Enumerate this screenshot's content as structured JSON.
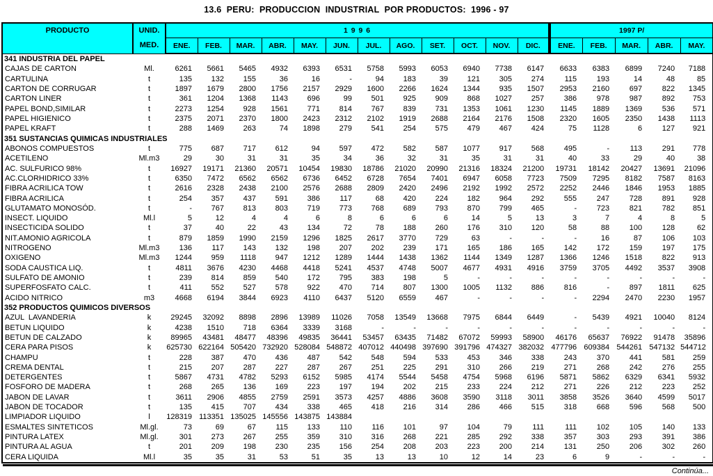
{
  "title": "13.6  PERU:  PRODUCCION  INDUSTRIAL  POR PRODUCTOS:  1996 - 97",
  "footer": "Continúa...",
  "colors": {
    "header_bg": "#00FFFF",
    "border": "#000000",
    "text": "#000000"
  },
  "table": {
    "header": {
      "product_label": "PRODUCTO",
      "unit_label_line1": "UNID.",
      "unit_label_line2": "MED.",
      "group_1996_label": "1 9 9 6",
      "group_1997_label": "1997 P/",
      "months_1996": [
        "ENE.",
        "FEB.",
        "MAR.",
        "ABR.",
        "MAY.",
        "JUN.",
        "JUL.",
        "AGO.",
        "SET.",
        "OCT.",
        "NOV.",
        "DIC."
      ],
      "months_1997": [
        "ENE.",
        "FEB.",
        "MAR.",
        "ABR.",
        "MAY."
      ]
    },
    "sections": [
      {
        "heading": "341 INDUSTRIA DEL PAPEL",
        "rows": [
          {
            "product": "CAJAS DE CARTON",
            "unit": "Ml.",
            "values": [
              "6261",
              "5661",
              "5465",
              "4932",
              "6393",
              "6531",
              "5758",
              "5993",
              "6053",
              "6940",
              "7738",
              "6147",
              "6633",
              "6383",
              "6899",
              "7240",
              "7188"
            ]
          },
          {
            "product": "CARTULINA",
            "unit": "t",
            "values": [
              "135",
              "132",
              "155",
              "36",
              "16",
              "-",
              "94",
              "183",
              "39",
              "121",
              "305",
              "274",
              "115",
              "193",
              "14",
              "48",
              "85"
            ]
          },
          {
            "product": "CARTON DE CORRUGAR",
            "unit": "t",
            "values": [
              "1897",
              "1679",
              "2800",
              "1756",
              "2157",
              "2929",
              "1600",
              "2266",
              "1624",
              "1344",
              "935",
              "1507",
              "2953",
              "2160",
              "697",
              "822",
              "1345"
            ]
          },
          {
            "product": "CARTON LINER",
            "unit": "t",
            "values": [
              "361",
              "1204",
              "1368",
              "1143",
              "696",
              "99",
              "501",
              "925",
              "909",
              "868",
              "1027",
              "257",
              "386",
              "978",
              "987",
              "892",
              "753"
            ]
          },
          {
            "product": "PAPEL BOND,SIMILAR",
            "unit": "t",
            "values": [
              "2273",
              "1254",
              "928",
              "1561",
              "771",
              "814",
              "767",
              "839",
              "731",
              "1353",
              "1061",
              "1230",
              "1145",
              "1889",
              "1369",
              "536",
              "571"
            ]
          },
          {
            "product": "PAPEL HIGIENICO",
            "unit": "t",
            "values": [
              "2375",
              "2071",
              "2370",
              "1800",
              "2423",
              "2312",
              "2102",
              "1919",
              "2688",
              "2164",
              "2176",
              "1508",
              "2320",
              "1605",
              "2350",
              "1438",
              "1113"
            ]
          },
          {
            "product": "PAPEL KRAFT",
            "unit": "t",
            "values": [
              "288",
              "1469",
              "263",
              "74",
              "1898",
              "279",
              "541",
              "254",
              "575",
              "479",
              "467",
              "424",
              "75",
              "1128",
              "6",
              "127",
              "921"
            ]
          }
        ]
      },
      {
        "heading": "351 SUSTANCIAS QUIMICAS INDUSTRIALES",
        "rows": [
          {
            "product": "ABONOS COMPUESTOS",
            "unit": "t",
            "values": [
              "775",
              "687",
              "717",
              "612",
              "94",
              "597",
              "472",
              "582",
              "587",
              "1077",
              "917",
              "568",
              "495",
              "-",
              "113",
              "291",
              "778"
            ]
          },
          {
            "product": "ACETILENO",
            "unit": "Ml.m3",
            "values": [
              "29",
              "30",
              "31",
              "31",
              "35",
              "34",
              "36",
              "32",
              "31",
              "35",
              "31",
              "31",
              "40",
              "33",
              "29",
              "40",
              "38"
            ]
          },
          {
            "product": "AC. SULFURICO 98%",
            "unit": "t",
            "values": [
              "16927",
              "19171",
              "21360",
              "20571",
              "10454",
              "19830",
              "18786",
              "21020",
              "20990",
              "21316",
              "18324",
              "21200",
              "19731",
              "18142",
              "20427",
              "13691",
              "21096"
            ]
          },
          {
            "product": "AC.CLORHIDRICO 33%",
            "unit": "t",
            "values": [
              "6350",
              "7472",
              "6562",
              "6562",
              "6736",
              "6452",
              "6728",
              "7654",
              "7401",
              "6947",
              "6058",
              "7723",
              "7509",
              "7295",
              "8182",
              "7587",
              "8163"
            ]
          },
          {
            "product": "FIBRA ACRILICA TOW",
            "unit": "t",
            "values": [
              "2616",
              "2328",
              "2438",
              "2100",
              "2576",
              "2688",
              "2809",
              "2420",
              "2496",
              "2192",
              "1992",
              "2572",
              "2252",
              "2446",
              "1846",
              "1953",
              "1885"
            ]
          },
          {
            "product": "FIBRA ACRILICA",
            "unit": "t",
            "values": [
              "254",
              "357",
              "437",
              "591",
              "386",
              "117",
              "68",
              "420",
              "224",
              "182",
              "964",
              "292",
              "555",
              "247",
              "728",
              "891",
              "928"
            ]
          },
          {
            "product": "GLUTAMATO MONOSÓD.",
            "unit": "t",
            "values": [
              "-",
              "767",
              "813",
              "803",
              "719",
              "773",
              "768",
              "689",
              "793",
              "870",
              "799",
              "465",
              "-",
              "723",
              "821",
              "782",
              "851"
            ]
          },
          {
            "product": "INSECT. LIQUIDO",
            "unit": "Ml.l",
            "values": [
              "5",
              "12",
              "4",
              "4",
              "6",
              "8",
              "6",
              "6",
              "6",
              "14",
              "5",
              "13",
              "3",
              "7",
              "4",
              "8",
              "5"
            ]
          },
          {
            "product": "INSECTICIDA SOLIDO",
            "unit": "t",
            "values": [
              "37",
              "40",
              "22",
              "43",
              "134",
              "72",
              "78",
              "188",
              "260",
              "176",
              "310",
              "120",
              "58",
              "88",
              "100",
              "128",
              "62"
            ]
          },
          {
            "product": "NIT.AMONIO AGRICOLA",
            "unit": "t",
            "values": [
              "879",
              "1859",
              "1990",
              "2159",
              "1296",
              "1825",
              "2617",
              "3770",
              "729",
              "63",
              "-",
              "-",
              "-",
              "16",
              "87",
              "106",
              "103"
            ]
          },
          {
            "product": "NITROGENO",
            "unit": "Ml.m3",
            "values": [
              "136",
              "117",
              "143",
              "132",
              "198",
              "207",
              "202",
              "239",
              "171",
              "165",
              "186",
              "165",
              "142",
              "172",
              "159",
              "197",
              "175"
            ]
          },
          {
            "product": "OXIGENO",
            "unit": "Ml.m3",
            "values": [
              "1244",
              "959",
              "1118",
              "947",
              "1212",
              "1289",
              "1444",
              "1438",
              "1362",
              "1144",
              "1349",
              "1287",
              "1366",
              "1246",
              "1518",
              "822",
              "913"
            ]
          },
          {
            "product": "SODA CAUSTICA LIQ.",
            "unit": "t",
            "values": [
              "4811",
              "3676",
              "4230",
              "4468",
              "4418",
              "5241",
              "4537",
              "4748",
              "5007",
              "4677",
              "4931",
              "4916",
              "3759",
              "3705",
              "4492",
              "3537",
              "3908"
            ]
          },
          {
            "product": "SULFATO DE AMONIO",
            "unit": "t",
            "values": [
              "239",
              "814",
              "859",
              "540",
              "172",
              "795",
              "383",
              "198",
              "5",
              "-",
              "-",
              "-",
              "-",
              "-",
              "-",
              "-",
              "-"
            ]
          },
          {
            "product": "SUPERFOSFATO CALC.",
            "unit": "t",
            "values": [
              "411",
              "552",
              "527",
              "578",
              "922",
              "470",
              "714",
              "807",
              "1300",
              "1005",
              "1132",
              "886",
              "816",
              "-",
              "897",
              "1811",
              "625"
            ]
          },
          {
            "product": "ACIDO NITRICO",
            "unit": "m3",
            "values": [
              "4668",
              "6194",
              "3844",
              "6923",
              "4110",
              "6437",
              "5120",
              "6559",
              "467",
              "-",
              "-",
              "-",
              "-",
              "2294",
              "2470",
              "2230",
              "1957"
            ]
          }
        ]
      },
      {
        "heading": "352 PRODUCTOS QUIMICOS DIVERSOS",
        "rows": [
          {
            "product": "AZUL  LAVANDERIA",
            "unit": "k",
            "values": [
              "29245",
              "32092",
              "8898",
              "2896",
              "13989",
              "11026",
              "7058",
              "13549",
              "13668",
              "7975",
              "6844",
              "6449",
              "-",
              "5439",
              "4921",
              "10040",
              "8124"
            ]
          },
          {
            "product": "BETUN LIQUIDO",
            "unit": "k",
            "values": [
              "4238",
              "1510",
              "718",
              "6364",
              "3339",
              "3168",
              "-",
              "-",
              "-",
              "-",
              "-",
              "-",
              "-",
              "-",
              "-",
              "-",
              "-"
            ]
          },
          {
            "product": "BETUN DE CALZADO",
            "unit": "k",
            "values": [
              "89965",
              "43481",
              "48477",
              "48396",
              "49835",
              "36441",
              "53457",
              "63435",
              "71482",
              "67072",
              "59993",
              "58900",
              "46176",
              "65637",
              "76922",
              "91478",
              "35896"
            ]
          },
          {
            "product": "CERA PARA PISOS",
            "unit": "k",
            "values": [
              "625730",
              "622164",
              "505420",
              "732920",
              "528084",
              "548872",
              "407012",
              "440498",
              "397690",
              "391796",
              "474327",
              "382032",
              "477796",
              "609384",
              "544261",
              "547132",
              "544712"
            ]
          },
          {
            "product": "CHAMPU",
            "unit": "t",
            "values": [
              "228",
              "387",
              "470",
              "436",
              "487",
              "542",
              "548",
              "594",
              "533",
              "453",
              "346",
              "338",
              "243",
              "370",
              "441",
              "581",
              "259"
            ]
          },
          {
            "product": "CREMA DENTAL",
            "unit": "t",
            "values": [
              "215",
              "207",
              "287",
              "227",
              "287",
              "267",
              "251",
              "225",
              "291",
              "310",
              "266",
              "219",
              "271",
              "268",
              "242",
              "276",
              "255"
            ]
          },
          {
            "product": "DETERGENTES",
            "unit": "t",
            "values": [
              "5867",
              "4731",
              "4782",
              "5293",
              "6152",
              "5985",
              "4174",
              "5544",
              "5458",
              "4754",
              "5968",
              "6196",
              "5871",
              "5862",
              "6329",
              "6341",
              "5932"
            ]
          },
          {
            "product": "FOSFORO DE MADERA",
            "unit": "t",
            "values": [
              "268",
              "265",
              "136",
              "169",
              "223",
              "197",
              "194",
              "202",
              "215",
              "233",
              "224",
              "212",
              "271",
              "226",
              "212",
              "223",
              "252"
            ]
          },
          {
            "product": "JABON DE LAVAR",
            "unit": "t",
            "values": [
              "3611",
              "2906",
              "4855",
              "2759",
              "2591",
              "3573",
              "4257",
              "4886",
              "3608",
              "3590",
              "3118",
              "3011",
              "3858",
              "3526",
              "3640",
              "4599",
              "5017"
            ]
          },
          {
            "product": "JABON DE TOCADOR",
            "unit": "t",
            "values": [
              "135",
              "415",
              "707",
              "434",
              "338",
              "465",
              "418",
              "216",
              "314",
              "286",
              "466",
              "515",
              "318",
              "668",
              "596",
              "568",
              "500"
            ]
          },
          {
            "product": "LIMPIADOR LIQUIDO",
            "unit": "l",
            "values": [
              "128319",
              "113351",
              "135025",
              "145556",
              "143875",
              "143884",
              "",
              "",
              "",
              "",
              "",
              "",
              "",
              "",
              "",
              "",
              ""
            ]
          },
          {
            "product": "ESMALTES SINTETICOS",
            "unit": "Ml.gl.",
            "values": [
              "73",
              "69",
              "67",
              "115",
              "133",
              "110",
              "116",
              "101",
              "97",
              "104",
              "79",
              "111",
              "111",
              "102",
              "105",
              "140",
              "133"
            ]
          },
          {
            "product": "PINTURA LATEX",
            "unit": "Ml.gl.",
            "values": [
              "301",
              "273",
              "267",
              "255",
              "359",
              "310",
              "316",
              "268",
              "221",
              "285",
              "292",
              "338",
              "357",
              "303",
              "293",
              "391",
              "386"
            ]
          },
          {
            "product": "PINTURA AL AGUA",
            "unit": "t",
            "values": [
              "201",
              "209",
              "198",
              "230",
              "235",
              "156",
              "254",
              "208",
              "203",
              "223",
              "200",
              "214",
              "131",
              "250",
              "206",
              "302",
              "260"
            ]
          },
          {
            "product": "CERA LIQUIDA",
            "unit": "Ml.l",
            "values": [
              "35",
              "35",
              "31",
              "53",
              "51",
              "35",
              "13",
              "13",
              "10",
              "12",
              "14",
              "23",
              "6",
              "9",
              "-",
              "-",
              "-"
            ]
          }
        ]
      }
    ]
  }
}
